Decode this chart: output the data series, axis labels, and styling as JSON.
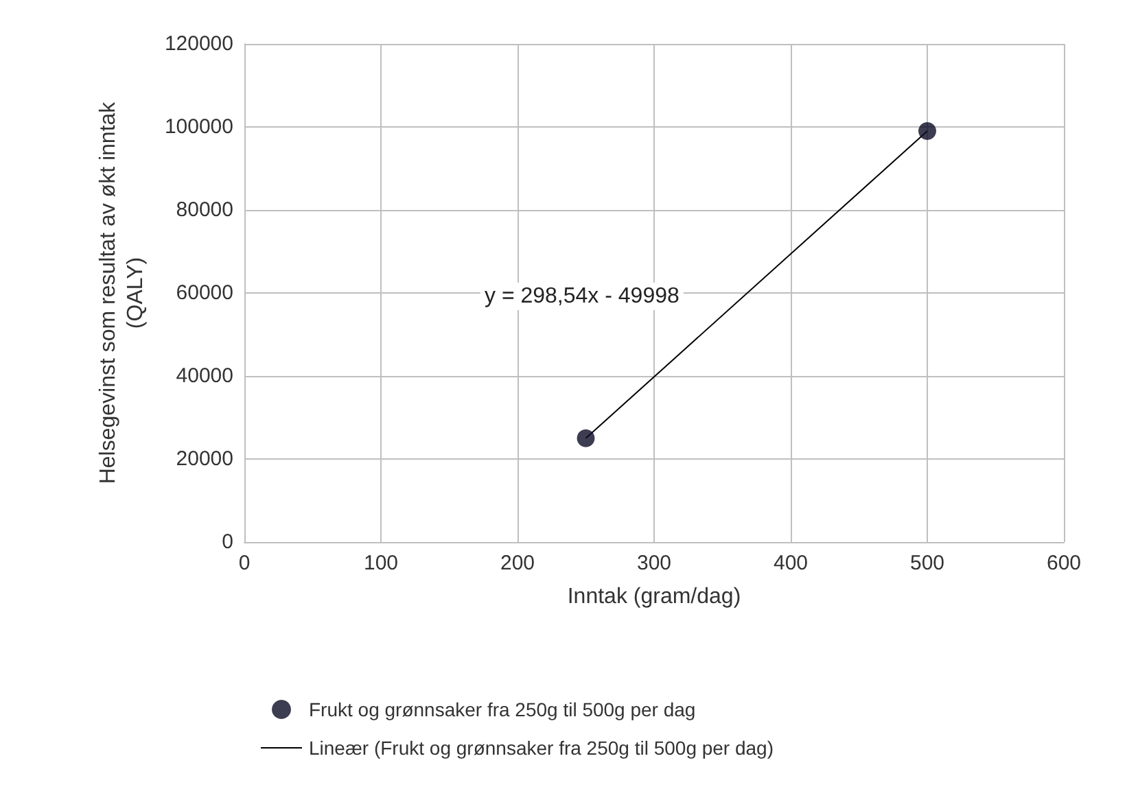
{
  "chart_data": {
    "type": "scatter",
    "xlabel": "Inntak (gram/dag)",
    "ylabel": "Helsegevinst som resultat av økt inntak\n(QALY)",
    "xlim": [
      0,
      600
    ],
    "xticks": [
      0,
      100,
      200,
      300,
      400,
      500,
      600
    ],
    "ylim": [
      0,
      120000
    ],
    "yticks": [
      0,
      20000,
      40000,
      60000,
      80000,
      100000,
      120000
    ],
    "x": [
      250,
      500
    ],
    "grid": true,
    "legend": "bottom",
    "marker": "circle",
    "annotations": [
      "y = 298,54x - 49998"
    ],
    "series": [
      {
        "name": "Frukt og grønnsaker fra 250g til 500g per dag",
        "color": "#0d0d26",
        "values": [
          25000,
          99000
        ]
      },
      {
        "name": "Lineær (Frukt og grønnsaker fra 250g til 500g per dag)",
        "type": "line",
        "color": "#000000",
        "marker": "none",
        "line_style": "solid",
        "values": [
          25000,
          99000
        ]
      }
    ]
  }
}
